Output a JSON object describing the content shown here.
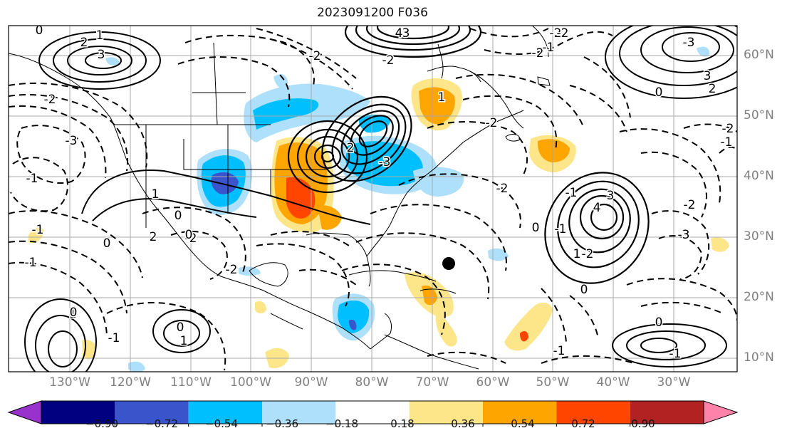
{
  "title": "2023091200 F036",
  "lon_ticks": [
    "130°W",
    "120°W",
    "110°W",
    "100°W",
    "90°W",
    "80°W",
    "70°W",
    "60°W",
    "50°W",
    "40°W",
    "30°W"
  ],
  "lat_ticks": [
    "60°N",
    "50°N",
    "40°N",
    "30°N",
    "20°N",
    "10°N"
  ],
  "colorbar": {
    "ticks": [
      "−0.90",
      "−0.72",
      "−0.54",
      "−0.36",
      "−0.18",
      "0.18",
      "0.36",
      "0.54",
      "0.72",
      "0.90"
    ],
    "colors": [
      "#9932cc",
      "#000080",
      "#3a55cc",
      "#00bfff",
      "#aee0fb",
      "#ffffff",
      "#fde68a",
      "#ffa500",
      "#ff4500",
      "#b22222",
      "#ff82ab"
    ]
  },
  "contour_labels": [
    {
      "text": "0"
    },
    {
      "text": "1"
    },
    {
      "text": "2"
    },
    {
      "text": "3"
    },
    {
      "text": "3"
    },
    {
      "text": "-2"
    },
    {
      "text": "-3"
    },
    {
      "text": "-1"
    },
    {
      "text": "-2"
    },
    {
      "text": "2"
    },
    {
      "text": "0"
    },
    {
      "text": "-2"
    },
    {
      "text": "4"
    },
    {
      "text": "-2"
    },
    {
      "text": "3"
    },
    {
      "text": "2"
    },
    {
      "text": "0"
    },
    {
      "text": "-1"
    },
    {
      "text": "-2"
    },
    {
      "text": "1"
    },
    {
      "text": "0"
    },
    {
      "text": "-2"
    },
    {
      "text": "-1"
    },
    {
      "text": "0"
    },
    {
      "text": "-2"
    },
    {
      "text": "2"
    },
    {
      "text": "-3"
    },
    {
      "text": "-2"
    },
    {
      "text": "-2"
    },
    {
      "text": "0"
    },
    {
      "text": "-1"
    },
    {
      "text": "-2"
    },
    {
      "text": "3"
    },
    {
      "text": "4"
    },
    {
      "text": "-1"
    },
    {
      "text": "-2"
    },
    {
      "text": "0"
    },
    {
      "text": "1"
    },
    {
      "text": "-1"
    },
    {
      "text": "-3"
    },
    {
      "text": "0"
    },
    {
      "text": "-1"
    },
    {
      "text": "0"
    },
    {
      "text": "1"
    },
    {
      "text": "1"
    },
    {
      "text": "0"
    },
    {
      "text": "-1"
    },
    {
      "text": "-1"
    },
    {
      "text": "-2"
    },
    {
      "text": "-1"
    },
    {
      "text": "1"
    },
    {
      "text": "-3"
    },
    {
      "text": "-2"
    }
  ]
}
